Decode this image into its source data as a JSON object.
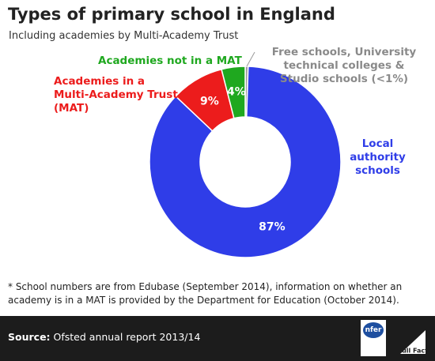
{
  "chart_data": {
    "type": "donut",
    "title": "Types of primary school in England",
    "subtitle": "Including academies by Multi-Academy Trust",
    "categories": [
      "Free schools, University technical colleges & Studio schools (<1%)",
      "Local authority schools",
      "Academies in a Multi-Academy Trust (MAT)",
      "Academies not in a MAT"
    ],
    "values": [
      0.5,
      87,
      9,
      4
    ],
    "value_labels": [
      null,
      "87%",
      "9%",
      "4%"
    ],
    "colors": [
      "#9a9a9a",
      "#2f3de8",
      "#ec1c1c",
      "#1fa81f"
    ]
  },
  "footnote": "* School numbers are from Edubase (September 2014), information on whether an academy is in a MAT is provided by the Department for Education (October 2014).",
  "footer": {
    "source_label": "Source:",
    "source": "Ofsted annual report 2013/14",
    "logo_1": "nfer",
    "logo_2": "Full Fact"
  }
}
